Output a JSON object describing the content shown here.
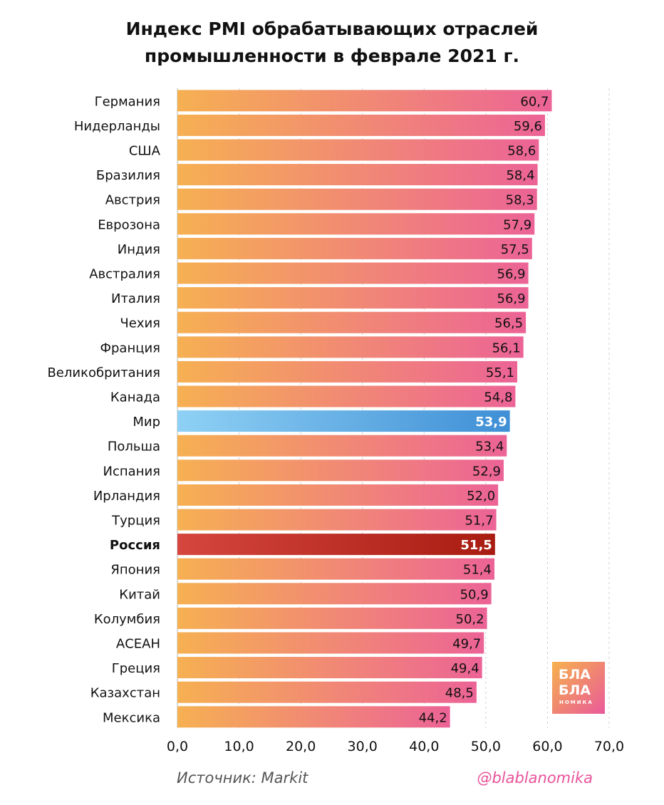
{
  "title_lines": [
    "Индекс PMI обрабатывающих отраслей",
    "промышленности в феврале 2021 г."
  ],
  "source": "Источник: Markit",
  "handle": "@blablanomika",
  "logo": {
    "line1": "БЛА",
    "line2": "БЛА",
    "line3": "НОМИКА"
  },
  "colors": {
    "bar_start": "#f6b052",
    "bar_end": "#ec6396",
    "highlight_world_start": "#8fd1f5",
    "highlight_world_end": "#3f8fd6",
    "highlight_russia_start": "#d4463e",
    "highlight_russia_end": "#a81c12",
    "grid": "#cfcfcf"
  },
  "chart_data": {
    "type": "bar",
    "orientation": "horizontal",
    "title": "Индекс PMI обрабатывающих отраслей промышленности в феврале 2021 г.",
    "categories": [
      "Германия",
      "Нидерланды",
      "США",
      "Бразилия",
      "Австрия",
      "Еврозона",
      "Индия",
      "Австралия",
      "Италия",
      "Чехия",
      "Франция",
      "Великобритания",
      "Канада",
      "Мир",
      "Польша",
      "Испания",
      "Ирландия",
      "Турция",
      "Россия",
      "Япония",
      "Китай",
      "Колумбия",
      "АСЕАН",
      "Греция",
      "Казахстан",
      "Мексика"
    ],
    "values": [
      60.7,
      59.6,
      58.6,
      58.4,
      58.3,
      57.9,
      57.5,
      56.9,
      56.9,
      56.5,
      56.1,
      55.1,
      54.8,
      53.9,
      53.4,
      52.9,
      52.0,
      51.7,
      51.5,
      51.4,
      50.9,
      50.2,
      49.7,
      49.4,
      48.5,
      44.2
    ],
    "value_labels": [
      "60,7",
      "59,6",
      "58,6",
      "58,4",
      "58,3",
      "57,9",
      "57,5",
      "56,9",
      "56,9",
      "56,5",
      "56,1",
      "55,1",
      "54,8",
      "53,9",
      "53,4",
      "52,9",
      "52,0",
      "51,7",
      "51,5",
      "51,4",
      "50,9",
      "50,2",
      "49,7",
      "49,4",
      "48,5",
      "44,2"
    ],
    "highlights": {
      "Мир": "world",
      "Россия": "russia"
    },
    "xlim": [
      0,
      70
    ],
    "xticks": [
      0,
      10,
      20,
      30,
      40,
      50,
      60,
      70
    ],
    "xtick_labels": [
      "0,0",
      "10,0",
      "20,0",
      "30,0",
      "40,0",
      "50,0",
      "60,0",
      "70,0"
    ],
    "grid": true,
    "legend": "none"
  }
}
